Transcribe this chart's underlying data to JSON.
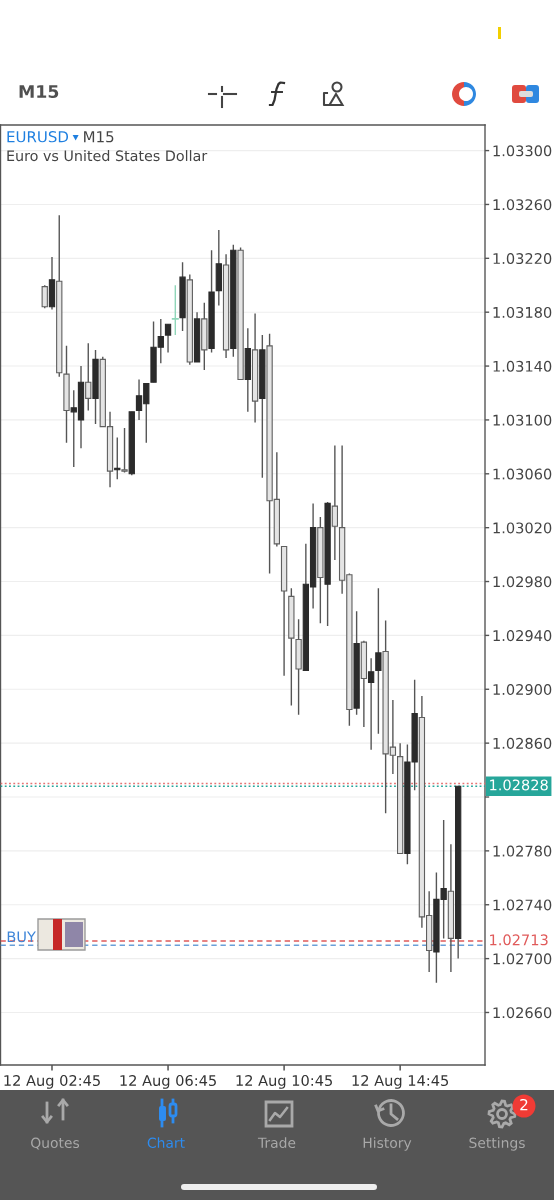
{
  "chart_data": {
    "type": "candlestick",
    "title": "EURUSD",
    "subtitle": "Euro vs United States Dollar",
    "categories": [
      null,
      "12 Aug 02:45",
      null,
      null,
      null,
      null,
      null,
      null,
      null,
      null,
      null,
      null,
      null,
      null,
      null,
      null,
      null,
      "12 Aug 06:45",
      null,
      null,
      null,
      null,
      null,
      null,
      null,
      null,
      null,
      null,
      null,
      null,
      null,
      null,
      null,
      "12 Aug 10:45",
      null,
      null,
      null,
      null,
      null,
      null,
      null,
      null,
      null,
      null,
      null,
      null,
      null,
      null,
      null,
      "12 Aug 14:45",
      null,
      null,
      null,
      null,
      null,
      null,
      null,
      null
    ],
    "ohlc": [
      [
        1.03199,
        1.032,
        1.03183,
        1.03184
      ],
      [
        1.03184,
        1.03221,
        1.03182,
        1.03204
      ],
      [
        1.03203,
        1.03252,
        1.03132,
        1.03135
      ],
      [
        1.03134,
        1.03155,
        1.03083,
        1.03107
      ],
      [
        1.03106,
        1.03122,
        1.03065,
        1.03109
      ],
      [
        1.031,
        1.0314,
        1.03079,
        1.03128
      ],
      [
        1.03128,
        1.03157,
        1.03107,
        1.03116
      ],
      [
        1.03116,
        1.03152,
        1.03097,
        1.03145
      ],
      [
        1.03145,
        1.03147,
        1.03095,
        1.03095
      ],
      [
        1.03095,
        1.03106,
        1.0305,
        1.03062
      ],
      [
        1.03063,
        1.03087,
        1.03056,
        1.03064
      ],
      [
        1.03063,
        1.03094,
        1.03061,
        1.03062
      ],
      [
        1.0306,
        1.03106,
        1.03059,
        1.03106
      ],
      [
        1.03107,
        1.0313,
        1.031,
        1.03118
      ],
      [
        1.03112,
        1.03127,
        1.03083,
        1.03127
      ],
      [
        1.03128,
        1.03173,
        1.03128,
        1.03154
      ],
      [
        1.03154,
        1.03175,
        1.03142,
        1.03162
      ],
      [
        1.03163,
        1.03171,
        1.0315,
        1.03171
      ],
      [
        1.03175,
        1.032,
        1.03163,
        1.03175
      ],
      [
        1.03176,
        1.03217,
        1.03166,
        1.03206
      ],
      [
        1.03204,
        1.03208,
        1.03141,
        1.03143
      ],
      [
        1.03143,
        1.0318,
        1.03143,
        1.03175
      ],
      [
        1.03175,
        1.03187,
        1.03137,
        1.03152
      ],
      [
        1.03153,
        1.03226,
        1.0315,
        1.03195
      ],
      [
        1.03196,
        1.03241,
        1.03185,
        1.03216
      ],
      [
        1.03215,
        1.03223,
        1.03146,
        1.03152
      ],
      [
        1.03153,
        1.0323,
        1.03147,
        1.03226
      ],
      [
        1.03226,
        1.03228,
        1.0313,
        1.0313
      ],
      [
        1.0313,
        1.03168,
        1.03106,
        1.03153
      ],
      [
        1.03152,
        1.03179,
        1.03098,
        1.03114
      ],
      [
        1.03116,
        1.03163,
        1.03057,
        1.03152
      ],
      [
        1.03155,
        1.03164,
        1.02986,
        1.0304
      ],
      [
        1.03041,
        1.03076,
        1.03006,
        1.03008
      ],
      [
        1.03006,
        1.03006,
        1.0291,
        1.02973
      ],
      [
        1.02969,
        1.02975,
        1.02888,
        1.02938
      ],
      [
        1.02937,
        1.02952,
        1.02881,
        1.02915
      ],
      [
        1.02914,
        1.03008,
        1.02914,
        1.02978
      ],
      [
        1.02976,
        1.03038,
        1.0296,
        1.0302
      ],
      [
        1.0302,
        1.03028,
        1.02949,
        1.02983
      ],
      [
        1.02978,
        1.03039,
        1.02947,
        1.03038
      ],
      [
        1.03036,
        1.03081,
        1.02996,
        1.03021
      ],
      [
        1.0302,
        1.03081,
        1.02971,
        1.02981
      ],
      [
        1.02985,
        1.02986,
        1.02873,
        1.02885
      ],
      [
        1.02886,
        1.02958,
        1.02881,
        1.02934
      ],
      [
        1.02935,
        1.02936,
        1.02872,
        1.02908
      ],
      [
        1.02905,
        1.02923,
        1.02855,
        1.02913
      ],
      [
        1.02914,
        1.02975,
        1.02867,
        1.02927
      ],
      [
        1.02928,
        1.02951,
        1.02808,
        1.02852
      ],
      [
        1.02857,
        1.02892,
        1.02837,
        1.02851
      ],
      [
        1.0285,
        1.0286,
        1.02778,
        1.02778
      ],
      [
        1.02778,
        1.02859,
        1.0277,
        1.02846
      ],
      [
        1.02846,
        1.02907,
        1.02825,
        1.02882
      ],
      [
        1.02879,
        1.02895,
        1.02723,
        1.02731
      ],
      [
        1.02732,
        1.0275,
        1.0269,
        1.02706
      ],
      [
        1.02705,
        1.02764,
        1.02682,
        1.02744
      ],
      [
        1.02744,
        1.02803,
        1.02715,
        1.02752
      ],
      [
        1.0275,
        1.02785,
        1.0269,
        1.02715
      ],
      [
        1.02715,
        1.02828,
        1.027,
        1.02828
      ]
    ],
    "colors": [
      "#e4e4e4",
      "#2b2b2b",
      "#e4e4e4",
      "#e4e4e4",
      "#2b2b2b",
      "#2b2b2b",
      "#e4e4e4",
      "#2b2b2b",
      "#e4e4e4",
      "#e4e4e4",
      "#2b2b2b",
      "#e4e4e4",
      "#2b2b2b",
      "#2b2b2b",
      "#2b2b2b",
      "#2b2b2b",
      "#2b2b2b",
      "#2b2b2b",
      "#8fd6b9",
      "#2b2b2b",
      "#e4e4e4",
      "#2b2b2b",
      "#e4e4e4",
      "#2b2b2b",
      "#2b2b2b",
      "#e4e4e4",
      "#2b2b2b",
      "#e4e4e4",
      "#2b2b2b",
      "#e4e4e4",
      "#2b2b2b",
      "#e4e4e4",
      "#e4e4e4",
      "#e4e4e4",
      "#e4e4e4",
      "#e4e4e4",
      "#2b2b2b",
      "#2b2b2b",
      "#e4e4e4",
      "#2b2b2b",
      "#e4e4e4",
      "#e4e4e4",
      "#e4e4e4",
      "#2b2b2b",
      "#e4e4e4",
      "#2b2b2b",
      "#2b2b2b",
      "#e4e4e4",
      "#e4e4e4",
      "#e4e4e4",
      "#2b2b2b",
      "#2b2b2b",
      "#e4e4e4",
      "#e4e4e4",
      "#2b2b2b",
      "#2b2b2b",
      "#e4e4e4",
      "#2b2b2b"
    ],
    "ylim": [
      1.02621,
      1.03319
    ],
    "yticks": [
      {
        "value": 1.033,
        "label": "1.03300"
      },
      {
        "value": 1.0326,
        "label": "1.03260"
      },
      {
        "value": 1.0322,
        "label": "1.03220"
      },
      {
        "value": 1.0318,
        "label": "1.03180"
      },
      {
        "value": 1.0314,
        "label": "1.03140"
      },
      {
        "value": 1.031,
        "label": "1.03100"
      },
      {
        "value": 1.0306,
        "label": "1.03060"
      },
      {
        "value": 1.0302,
        "label": "1.03020"
      },
      {
        "value": 1.0298,
        "label": "1.02980"
      },
      {
        "value": 1.0294,
        "label": "1.02940"
      },
      {
        "value": 1.029,
        "label": "1.02900"
      },
      {
        "value": 1.0286,
        "label": "1.02860"
      },
      {
        "value": 1.0282,
        "label": null
      },
      {
        "value": 1.0278,
        "label": "1.02780"
      },
      {
        "value": 1.0274,
        "label": "1.02740"
      },
      {
        "value": 1.027,
        "label": "1.02700"
      },
      {
        "value": 1.0266,
        "label": "1.02660"
      }
    ],
    "grid": "y",
    "ref_lines": [
      {
        "axis": "y",
        "value": 1.0283,
        "color": "#e57373",
        "line_style": "dotted"
      },
      {
        "axis": "y",
        "value": 1.02828,
        "label": "1.02828",
        "color": "#26a69a",
        "line_style": "dotted"
      },
      {
        "axis": "y",
        "value": 1.02713,
        "label": "1.02713",
        "color": "#e05a5a",
        "line_style": "dashed"
      },
      {
        "axis": "y",
        "value": 1.0271,
        "color": "#6a9fd8",
        "line_style": "dashed"
      }
    ],
    "annotations": [
      "M15",
      "M15",
      "Quotes",
      "Chart",
      "Trade",
      "History",
      "Settings",
      "2",
      {
        "text": "BUY",
        "y": 1.0271
      }
    ]
  }
}
